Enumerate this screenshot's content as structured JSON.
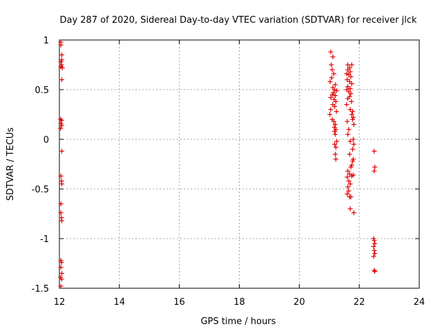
{
  "chart_data": {
    "type": "scatter",
    "title": "Day 287 of 2020, Sidereal Day-to-day VTEC variation (SDTVAR) for receiver jlck",
    "xlabel": "GPS time / hours",
    "ylabel": "SDTVAR / TECUs",
    "xlim": [
      12,
      24
    ],
    "ylim": [
      -1.5,
      1
    ],
    "x_ticks": [
      12,
      14,
      16,
      18,
      20,
      22,
      24
    ],
    "x_tick_labels": [
      "12",
      "14",
      "16",
      "18",
      "20",
      "22",
      "24"
    ],
    "y_ticks": [
      -1.5,
      -1,
      -0.5,
      0,
      0.5,
      1
    ],
    "y_tick_labels": [
      "-1.5",
      "-1",
      "-0.5",
      "0",
      "0.5",
      "1"
    ],
    "grid": true,
    "marker": "+",
    "marker_color": "#e00000",
    "legend": "none",
    "series": [
      {
        "values_xy": [
          [
            12.05,
            0.98
          ],
          [
            12.05,
            0.95
          ],
          [
            12.08,
            0.85
          ],
          [
            12.08,
            0.8
          ],
          [
            12.05,
            0.78
          ],
          [
            12.07,
            0.75
          ],
          [
            12.05,
            0.73
          ],
          [
            12.1,
            0.72
          ],
          [
            12.08,
            0.6
          ],
          [
            12.04,
            0.2
          ],
          [
            12.07,
            0.19
          ],
          [
            12.05,
            0.16
          ],
          [
            12.08,
            0.14
          ],
          [
            12.04,
            0.11
          ],
          [
            12.08,
            -0.12
          ],
          [
            12.05,
            -0.37
          ],
          [
            12.07,
            -0.42
          ],
          [
            12.08,
            -0.45
          ],
          [
            12.05,
            -0.65
          ],
          [
            12.05,
            -0.74
          ],
          [
            12.07,
            -0.79
          ],
          [
            12.08,
            -0.82
          ],
          [
            12.05,
            -1.22
          ],
          [
            12.07,
            -1.24
          ],
          [
            12.05,
            -1.29
          ],
          [
            12.08,
            -1.35
          ],
          [
            12.04,
            -1.39
          ],
          [
            12.07,
            -1.41
          ],
          [
            12.05,
            -1.48
          ],
          [
            21.05,
            0.88
          ],
          [
            21.12,
            0.83
          ],
          [
            21.07,
            0.75
          ],
          [
            21.1,
            0.7
          ],
          [
            21.15,
            0.66
          ],
          [
            21.08,
            0.62
          ],
          [
            21.03,
            0.58
          ],
          [
            21.2,
            0.55
          ],
          [
            21.12,
            0.52
          ],
          [
            21.18,
            0.5
          ],
          [
            21.25,
            0.49
          ],
          [
            21.14,
            0.47
          ],
          [
            21.1,
            0.45
          ],
          [
            21.2,
            0.44
          ],
          [
            21.05,
            0.42
          ],
          [
            21.16,
            0.4
          ],
          [
            21.22,
            0.38
          ],
          [
            21.12,
            0.35
          ],
          [
            21.18,
            0.33
          ],
          [
            21.05,
            0.3
          ],
          [
            21.24,
            0.28
          ],
          [
            21.02,
            0.25
          ],
          [
            21.1,
            0.2
          ],
          [
            21.15,
            0.18
          ],
          [
            21.2,
            0.15
          ],
          [
            21.17,
            0.12
          ],
          [
            21.22,
            0.1
          ],
          [
            21.18,
            0.08
          ],
          [
            21.2,
            0.05
          ],
          [
            21.25,
            -0.02
          ],
          [
            21.18,
            -0.05
          ],
          [
            21.22,
            -0.08
          ],
          [
            21.2,
            -0.15
          ],
          [
            21.22,
            -0.2
          ],
          [
            21.62,
            0.75
          ],
          [
            21.68,
            0.72
          ],
          [
            21.75,
            0.75
          ],
          [
            21.62,
            0.7
          ],
          [
            21.7,
            0.68
          ],
          [
            21.58,
            0.66
          ],
          [
            21.65,
            0.65
          ],
          [
            21.72,
            0.63
          ],
          [
            21.6,
            0.6
          ],
          [
            21.68,
            0.58
          ],
          [
            21.75,
            0.56
          ],
          [
            21.62,
            0.53
          ],
          [
            21.7,
            0.51
          ],
          [
            21.58,
            0.5
          ],
          [
            21.65,
            0.48
          ],
          [
            21.72,
            0.46
          ],
          [
            21.68,
            0.43
          ],
          [
            21.62,
            0.41
          ],
          [
            21.74,
            0.38
          ],
          [
            21.58,
            0.35
          ],
          [
            21.7,
            0.3
          ],
          [
            21.78,
            0.28
          ],
          [
            21.75,
            0.25
          ],
          [
            21.8,
            0.22
          ],
          [
            21.78,
            0.2
          ],
          [
            21.6,
            0.18
          ],
          [
            21.82,
            0.15
          ],
          [
            21.65,
            0.1
          ],
          [
            21.62,
            0.05
          ],
          [
            21.8,
            0.0
          ],
          [
            21.7,
            -0.02
          ],
          [
            21.82,
            -0.05
          ],
          [
            21.78,
            -0.1
          ],
          [
            21.68,
            -0.15
          ],
          [
            21.8,
            -0.2
          ],
          [
            21.78,
            -0.22
          ],
          [
            21.75,
            -0.26
          ],
          [
            21.72,
            -0.28
          ],
          [
            21.62,
            -0.32
          ],
          [
            21.68,
            -0.35
          ],
          [
            21.8,
            -0.36
          ],
          [
            21.75,
            -0.37
          ],
          [
            21.6,
            -0.38
          ],
          [
            21.65,
            -0.42
          ],
          [
            21.7,
            -0.45
          ],
          [
            21.62,
            -0.48
          ],
          [
            21.65,
            -0.52
          ],
          [
            21.6,
            -0.55
          ],
          [
            21.68,
            -0.58
          ],
          [
            21.72,
            -0.58
          ],
          [
            21.7,
            -0.7
          ],
          [
            21.82,
            -0.74
          ],
          [
            22.5,
            -0.12
          ],
          [
            22.52,
            -0.28
          ],
          [
            22.5,
            -0.32
          ],
          [
            22.48,
            -1.0
          ],
          [
            22.5,
            -1.02
          ],
          [
            22.52,
            -1.05
          ],
          [
            22.48,
            -1.08
          ],
          [
            22.5,
            -1.12
          ],
          [
            22.52,
            -1.15
          ],
          [
            22.48,
            -1.18
          ],
          [
            22.5,
            -1.32
          ],
          [
            22.52,
            -1.33
          ]
        ]
      }
    ]
  }
}
